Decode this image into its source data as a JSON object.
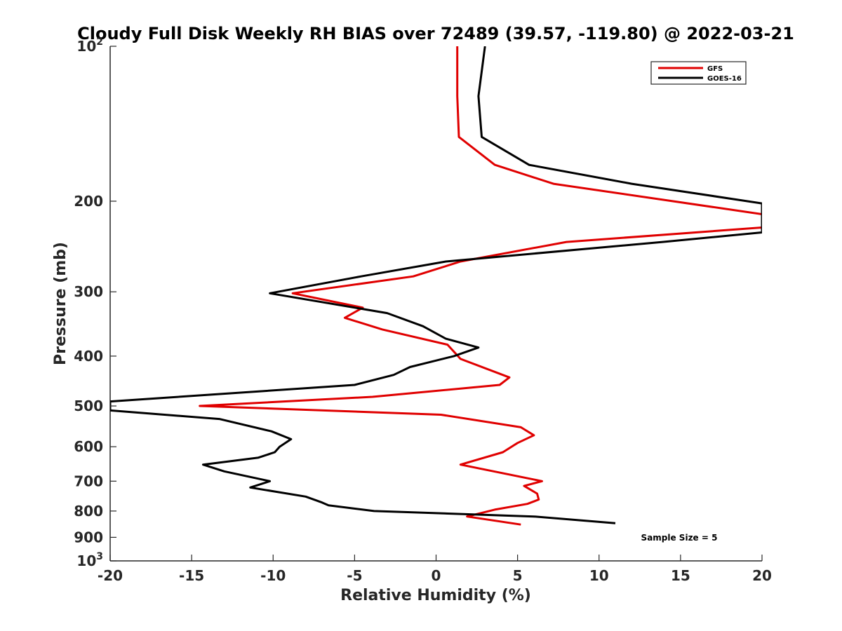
{
  "chart_data": {
    "type": "line",
    "title": "Cloudy Full Disk Weekly RH BIAS over 72489 (39.57, -119.80) @ 2022-03-21",
    "xlabel": "Relative Humidity (%)",
    "ylabel": "Pressure (mb)",
    "xlim": [
      -20,
      20
    ],
    "ylim": [
      100,
      1000
    ],
    "y_scale": "log",
    "y_reversed": true,
    "x_ticks": [
      -20,
      -15,
      -10,
      -5,
      0,
      5,
      10,
      15,
      20
    ],
    "x_tick_labels": [
      "-20",
      "-15",
      "-10",
      "-5",
      "0",
      "5",
      "10",
      "15",
      "20"
    ],
    "y_ticks": [
      100,
      200,
      300,
      400,
      500,
      600,
      700,
      800,
      900,
      1000
    ],
    "y_tick_labels": [
      {
        "base": "10",
        "exp": "2"
      },
      {
        "base": "200",
        "exp": ""
      },
      {
        "base": "300",
        "exp": ""
      },
      {
        "base": "400",
        "exp": ""
      },
      {
        "base": "500",
        "exp": ""
      },
      {
        "base": "600",
        "exp": ""
      },
      {
        "base": "700",
        "exp": ""
      },
      {
        "base": "800",
        "exp": ""
      },
      {
        "base": "900",
        "exp": ""
      },
      {
        "base": "10",
        "exp": "3"
      }
    ],
    "grid": false,
    "legend_position": "top-right",
    "annotation": "Sample Size = 5",
    "series": [
      {
        "name": "GFS",
        "color": "#e00000",
        "points": [
          [
            1.3,
            100
          ],
          [
            1.3,
            125
          ],
          [
            1.4,
            150
          ],
          [
            3.6,
            170
          ],
          [
            7.2,
            185
          ],
          [
            20,
            212
          ],
          [
            20,
            225
          ],
          [
            8,
            240
          ],
          [
            1.5,
            262
          ],
          [
            -1.4,
            280
          ],
          [
            -8.8,
            302
          ],
          [
            -4.5,
            322
          ],
          [
            -5.6,
            337
          ],
          [
            -3.3,
            355
          ],
          [
            0.7,
            380
          ],
          [
            1.5,
            405
          ],
          [
            4.5,
            440
          ],
          [
            3.9,
            455
          ],
          [
            -3.9,
            480
          ],
          [
            -14.5,
            500
          ],
          [
            0.3,
            520
          ],
          [
            5.2,
            550
          ],
          [
            6,
            570
          ],
          [
            5,
            590
          ],
          [
            4.1,
            615
          ],
          [
            1.5,
            650
          ],
          [
            6.5,
            700
          ],
          [
            5.4,
            715
          ],
          [
            6.2,
            740
          ],
          [
            6.3,
            760
          ],
          [
            5.6,
            775
          ],
          [
            3.6,
            795
          ],
          [
            1.9,
            820
          ],
          [
            5.2,
            850
          ]
        ]
      },
      {
        "name": "GOES-16",
        "color": "#000000",
        "points": [
          [
            3,
            100
          ],
          [
            2.6,
            125
          ],
          [
            2.8,
            150
          ],
          [
            5.7,
            170
          ],
          [
            12,
            185
          ],
          [
            20,
            202
          ],
          [
            20,
            230
          ],
          [
            13.9,
            240
          ],
          [
            0.6,
            262
          ],
          [
            -4.6,
            280
          ],
          [
            -10.2,
            302
          ],
          [
            -3,
            330
          ],
          [
            -0.8,
            350
          ],
          [
            0.6,
            370
          ],
          [
            2.6,
            385
          ],
          [
            1.1,
            400
          ],
          [
            -1.6,
            420
          ],
          [
            -2.6,
            435
          ],
          [
            -5,
            455
          ],
          [
            -20,
            490
          ],
          [
            -20,
            510
          ],
          [
            -13.3,
            530
          ],
          [
            -10.1,
            560
          ],
          [
            -8.9,
            580
          ],
          [
            -9.6,
            600
          ],
          [
            -9.9,
            615
          ],
          [
            -10.9,
            630
          ],
          [
            -14.3,
            650
          ],
          [
            -13,
            670
          ],
          [
            -10.2,
            700
          ],
          [
            -11.4,
            720
          ],
          [
            -8,
            750
          ],
          [
            -7,
            770
          ],
          [
            -6.6,
            780
          ],
          [
            -3.8,
            800
          ],
          [
            6,
            820
          ],
          [
            11,
            845
          ]
        ]
      }
    ]
  }
}
